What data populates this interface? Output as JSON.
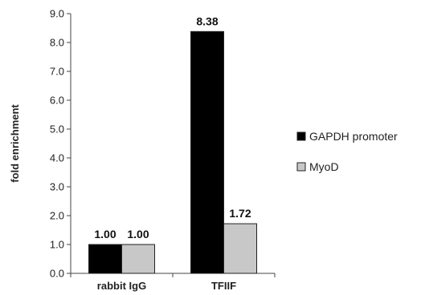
{
  "chart_data": {
    "type": "bar",
    "ylabel": "fold enrichment",
    "xlabel": "",
    "ylim": [
      0,
      9
    ],
    "yticks": [
      "0.0",
      "1.0",
      "2.0",
      "3.0",
      "4.0",
      "5.0",
      "6.0",
      "7.0",
      "8.0",
      "9.0"
    ],
    "categories": [
      "rabbit IgG",
      "TFIIF"
    ],
    "series": [
      {
        "name": "GAPDH promoter",
        "values": [
          1.0,
          8.38
        ],
        "labels": [
          "1.00",
          "8.38"
        ],
        "color": "#000000"
      },
      {
        "name": "MyoD",
        "values": [
          1.0,
          1.72
        ],
        "labels": [
          "1.00",
          "1.72"
        ],
        "color": "#c8c8c8"
      }
    ],
    "legend_position": "right",
    "grid": false
  }
}
